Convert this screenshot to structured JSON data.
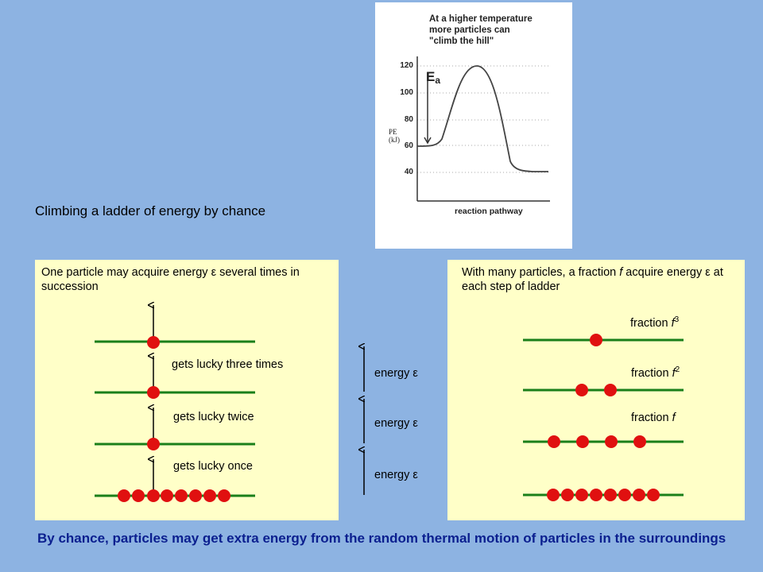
{
  "graph": {
    "caption_lines": [
      "At a higher temperature",
      "more particles can",
      "\"climb the hill\""
    ],
    "y_ticks": [
      "120",
      "100",
      "80",
      "60",
      "40"
    ],
    "y_label_lines": [
      "PE",
      "(kJ)"
    ],
    "x_label": "reaction pathway",
    "ea_label": "E",
    "ea_sub": "a"
  },
  "title": "Climbing a ladder of energy by chance",
  "left_panel": {
    "intro": "One particle may acquire energy ε several times in succession",
    "labels": [
      "gets lucky three times",
      "gets lucky twice",
      "gets lucky once"
    ]
  },
  "middle": {
    "labels": [
      "energy ε",
      "energy ε",
      "energy ε"
    ]
  },
  "right_panel": {
    "intro_pre": "With many particles, a fraction ",
    "intro_f": "f",
    "intro_post": " acquire energy ε at each step of ladder",
    "fraction_word": "fraction ",
    "fraction_var": "f",
    "exp3": "3",
    "exp2": "2"
  },
  "footer": "By chance, particles may get extra energy from the random thermal motion of particles in the surroundings",
  "colors": {
    "background": "#8db3e2",
    "panel": "#ffffc8",
    "ladder_line": "#1a7f1a",
    "particle": "#e01010",
    "footer_text": "#0b1f8f"
  }
}
